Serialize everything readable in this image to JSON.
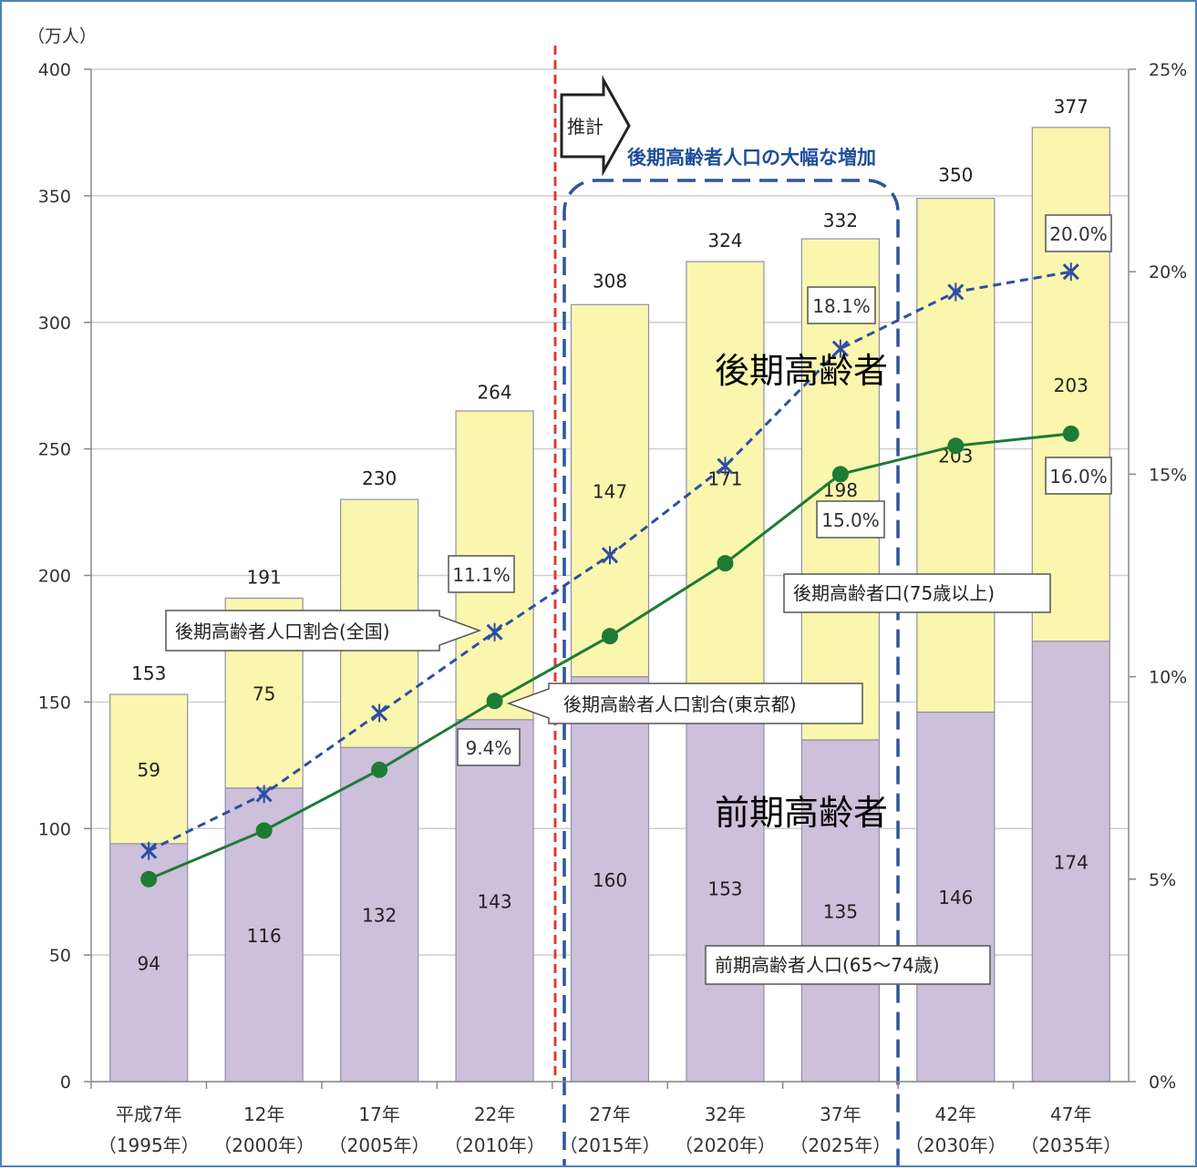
{
  "chart_data": {
    "type": "bar",
    "stacked": true,
    "unit_label": "（万人）",
    "categories": [
      [
        "平成7年",
        "（1995年）"
      ],
      [
        "12年",
        "（2000年）"
      ],
      [
        "17年",
        "（2005年）"
      ],
      [
        "22年",
        "（2010年）"
      ],
      [
        "27年",
        "（2015年）"
      ],
      [
        "32年",
        "（2020年）"
      ],
      [
        "37年",
        "（2025年）"
      ],
      [
        "42年",
        "（2030年）"
      ],
      [
        "47年",
        "（2035年）"
      ]
    ],
    "series": [
      {
        "key": "early",
        "values": [
          94,
          116,
          132,
          143,
          160,
          153,
          135,
          146,
          174
        ],
        "color": "#ccc0da"
      },
      {
        "key": "late",
        "values": [
          59,
          75,
          98,
          122,
          147,
          171,
          198,
          203,
          203
        ],
        "color": "#fbf6ae"
      }
    ],
    "totals": [
      153,
      191,
      230,
      264,
      308,
      324,
      332,
      350,
      377
    ],
    "lines": [
      {
        "name": "後期高齢者人口割合（全国）",
        "axis": "right",
        "values": [
          5.7,
          7.1,
          9.1,
          11.1,
          13.0,
          15.2,
          18.1,
          19.5,
          20.0
        ],
        "color": "#2e4ea3",
        "style": "dashed-x"
      },
      {
        "name": "後期高齢者人口割合（東京都）",
        "axis": "right",
        "values": [
          5.0,
          6.2,
          7.7,
          9.4,
          11.0,
          12.8,
          15.0,
          15.7,
          16.0
        ],
        "color": "#1e7b34",
        "style": "solid-dot"
      }
    ],
    "ylim": [
      0,
      400
    ],
    "y_ticks": [
      "0",
      "50",
      "100",
      "150",
      "200",
      "250",
      "300",
      "350",
      "400"
    ],
    "y2lim": [
      0,
      25
    ],
    "y2_ticks": [
      "0%",
      "5%",
      "10%",
      "15%",
      "20%",
      "25%"
    ],
    "grid": true,
    "pct_labels": [
      "11.1%",
      "9.4%",
      "18.1%",
      "15.0%",
      "20.0%",
      "16.0%"
    ],
    "annotations": {
      "projection": "推計",
      "increase": "後期高齢者人口の大幅な増加",
      "late_big": "後期高齢者",
      "early_big": "前期高齢者",
      "late_callout": "後期高齢者口(75歳以上)",
      "early_callout": "前期高齢者人口(65〜74歳)",
      "national_callout": "後期高齢者人口割合(全国)",
      "tokyo_callout": "後期高齢者人口割合(東京都)"
    }
  }
}
